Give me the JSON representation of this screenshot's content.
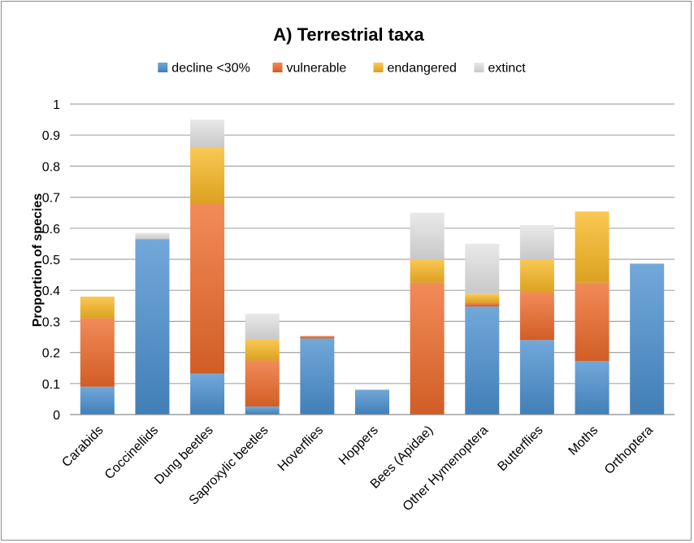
{
  "chart_data": {
    "type": "bar",
    "stacked": true,
    "title": "A) Terrestrial taxa",
    "xlabel": "",
    "ylabel": "Proportion of species",
    "ylim": [
      0,
      1
    ],
    "yticks": [
      "0",
      "0.1",
      "0.2",
      "0.3",
      "0.4",
      "0.5",
      "0.6",
      "0.7",
      "0.8",
      "0.9",
      "1"
    ],
    "grid": true,
    "legend_position": "top",
    "categories": [
      "Carabids",
      "Coccinellids",
      "Dung beetles",
      "Saproxylic beetles",
      "Hoverflies",
      "Hoppers",
      "Bees (Apidae)",
      "Other Hymenoptera",
      "Butterflies",
      "Moths",
      "Orthoptera"
    ],
    "series": [
      {
        "name": "decline <30%",
        "color": "#4a90d0",
        "values": [
          0.09,
          0.565,
          0.132,
          0.026,
          0.245,
          0.08,
          0.0,
          0.348,
          0.24,
          0.172,
          0.486
        ]
      },
      {
        "name": "vulnerable",
        "color": "#ee6a2a",
        "values": [
          0.22,
          0.0,
          0.546,
          0.148,
          0.008,
          0.0,
          0.425,
          0.012,
          0.154,
          0.253,
          0.0
        ]
      },
      {
        "name": "endangered",
        "color": "#f9b824",
        "values": [
          0.07,
          0.0,
          0.182,
          0.068,
          0.0,
          0.0,
          0.075,
          0.028,
          0.106,
          0.229,
          0.0
        ]
      },
      {
        "name": "extinct",
        "color": "#e3e3e3",
        "values": [
          0.0,
          0.02,
          0.09,
          0.083,
          0.0,
          0.0,
          0.15,
          0.162,
          0.11,
          0.0,
          0.0
        ]
      }
    ]
  }
}
